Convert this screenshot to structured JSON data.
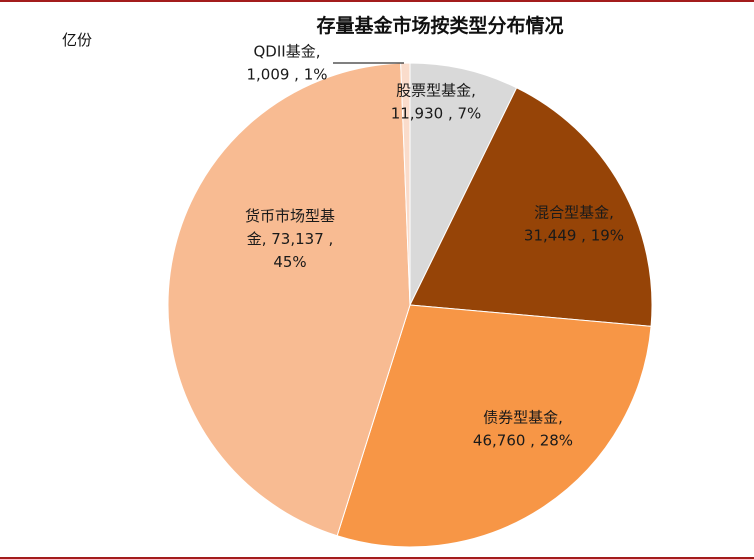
{
  "unit_label": "亿份",
  "chart_data": {
    "type": "pie",
    "title": "存量基金市场按类型分布情况",
    "unit": "亿份",
    "start_angle_deg": 0,
    "direction": "clockwise",
    "slices": [
      {
        "name": "股票型基金",
        "value": 11930,
        "percent": "7%",
        "label_lines": [
          "股票型基金,",
          "11,930 , 7%"
        ],
        "color": "#d9d9d9"
      },
      {
        "name": "混合型基金",
        "value": 31449,
        "percent": "19%",
        "label_lines": [
          "混合型基金,",
          "31,449 , 19%"
        ],
        "color": "#964407"
      },
      {
        "name": "债券型基金",
        "value": 46760,
        "percent": "28%",
        "label_lines": [
          "债券型基金,",
          "46,760 , 28%"
        ],
        "color": "#f79646"
      },
      {
        "name": "货币市场型基金",
        "value": 73137,
        "percent": "45%",
        "label_lines": [
          "货币市场型基",
          "金, 73,137 ,",
          "45%"
        ],
        "color": "#f8bb92"
      },
      {
        "name": "QDII基金",
        "value": 1009,
        "percent": "1%",
        "label_lines": [
          "QDII基金,",
          "1,009 , 1%"
        ],
        "color": "#fadccb"
      }
    ]
  }
}
